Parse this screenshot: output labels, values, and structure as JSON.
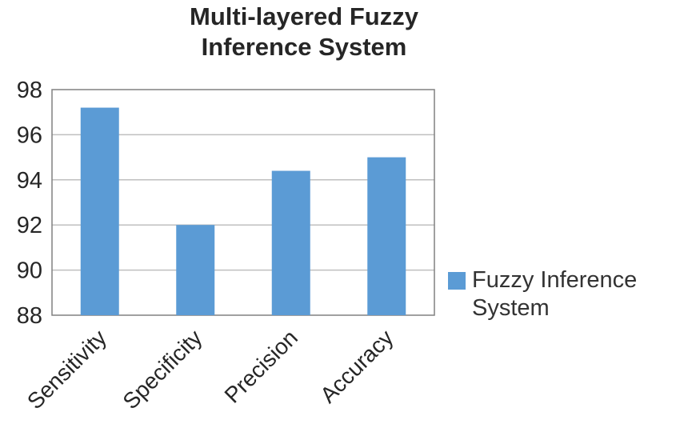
{
  "chart_data": {
    "type": "bar",
    "title": "Multi-layered Fuzzy Inference System",
    "title_lines": [
      "Multi-layered Fuzzy",
      "Inference System"
    ],
    "categories": [
      "Sensitivity",
      "Specificity",
      "Precision",
      "Accuracy"
    ],
    "series": [
      {
        "name": "Fuzzy Inference System",
        "values": [
          97.2,
          92.0,
          94.4,
          95.0
        ]
      }
    ],
    "legend_lines": [
      "Fuzzy Inference",
      "System"
    ],
    "legend_position": "right",
    "xlabel": "",
    "ylabel": "",
    "ylim": [
      88,
      98
    ],
    "yticks": [
      88,
      90,
      92,
      94,
      96,
      98
    ],
    "grid": "horizontal",
    "colors": {
      "bar": "#5B9BD5",
      "grid": "#BFBFBF",
      "plot_border": "#808080",
      "text": "#262626",
      "title": "#262626"
    }
  }
}
